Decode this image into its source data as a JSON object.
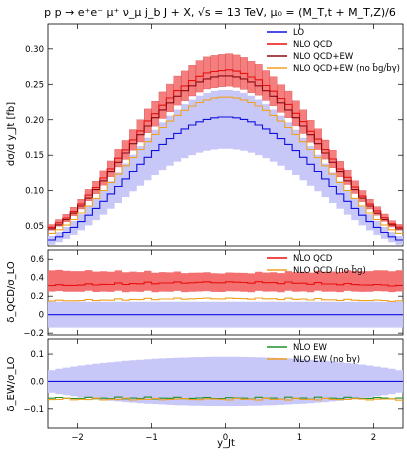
{
  "chart_data": {
    "type": "line",
    "title": "p p → e⁺e⁻ μ⁺ ν_μ j_b J + X,  √s = 13 TeV,  μ₀ = (M_T,t + M_T,Z)/6",
    "xlabel": "y_Jt",
    "xlim": [
      -2.4,
      2.4
    ],
    "x_ticks": [
      "−2",
      "−1",
      "0",
      "1",
      "2"
    ],
    "panels": [
      {
        "name": "main",
        "ylabel": "dσ/d y_Jt [fb]",
        "ylim": [
          0.022,
          0.335
        ],
        "y_ticks": [
          "0.05",
          "0.10",
          "0.15",
          "0.20",
          "0.25",
          "0.30"
        ],
        "legend_position": "top-right",
        "series": [
          {
            "name": "LO",
            "color": "#1010e0",
            "peak": 0.204,
            "edge": 0.028,
            "band_rel": 0.22,
            "band_color": "#c8c8f8"
          },
          {
            "name": "NLO QCD",
            "color": "#e81010",
            "peak": 0.27,
            "edge": 0.045,
            "band_rel": 0.085,
            "band_color": "#f47070"
          },
          {
            "name": "NLO QCD+EW",
            "color": "#8b0a10",
            "peak": 0.262,
            "edge": 0.043
          },
          {
            "name": "NLO QCD+EW (no b̄g/b̄γ)",
            "color": "#f0a020",
            "peak": 0.232,
            "edge": 0.037
          }
        ]
      },
      {
        "name": "qcd-ratio",
        "ylabel": "δ_QCD/σ_LO",
        "ylim": [
          -0.22,
          0.7
        ],
        "y_ticks": [
          "−0.2",
          "0",
          "0.2",
          "0.4",
          "0.6"
        ],
        "legend_position": "top-right",
        "series": [
          {
            "name": "NLO QCD",
            "color": "#e81010",
            "center": 0.33,
            "band": [
              0.25,
              0.45
            ]
          },
          {
            "name": "NLO QCD (no b̄g)",
            "color": "#f0a020",
            "center": 0.16
          }
        ],
        "lo_band": [
          -0.14,
          0.14
        ]
      },
      {
        "name": "ew-ratio",
        "ylabel": "δ_EW/σ_LO",
        "ylim": [
          -0.17,
          0.155
        ],
        "y_ticks": [
          "−0.1",
          "0.0",
          "0.1"
        ],
        "legend_position": "top-right",
        "series": [
          {
            "name": "NLO EW",
            "color": "#20902a",
            "center": -0.061
          },
          {
            "name": "NLO EW (no b̄γ)",
            "color": "#f0a020",
            "center": -0.065
          }
        ],
        "lo_band_center": 0.09,
        "lo_band_edge": 0.015
      }
    ]
  }
}
